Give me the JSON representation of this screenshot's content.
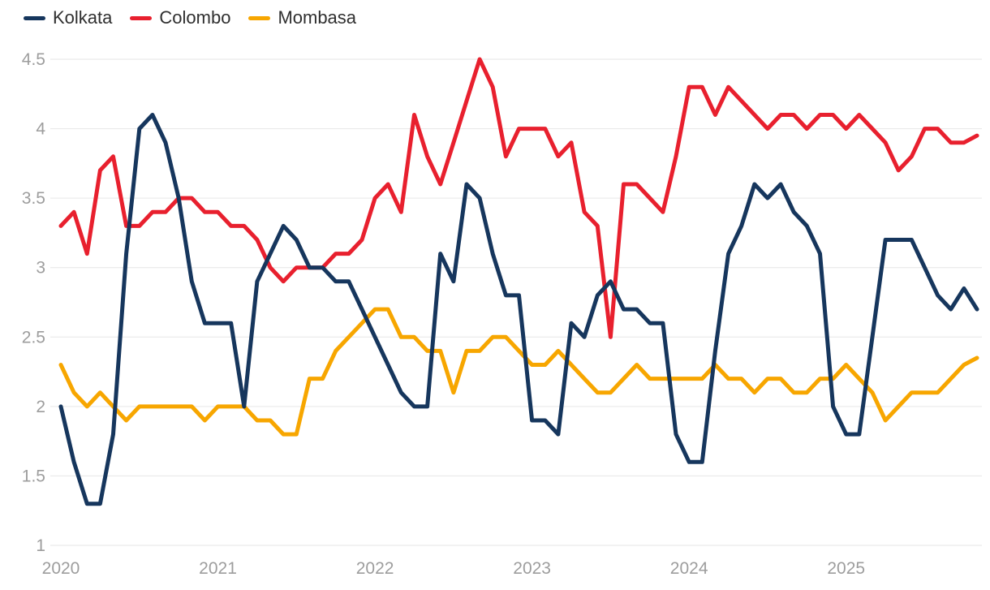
{
  "legend": {
    "items": [
      {
        "label": "Kolkata",
        "color": "#16365d"
      },
      {
        "label": "Colombo",
        "color": "#e8202e"
      },
      {
        "label": "Mombasa",
        "color": "#f7a600"
      }
    ]
  },
  "styles": {
    "background": "#ffffff",
    "grid_color": "#e6e6e6",
    "tick_color": "#9d9d9d",
    "legend_text_color": "#2f2f2f",
    "tick_font_size": 21
  },
  "chart_data": {
    "type": "line",
    "title": "",
    "xlabel": "",
    "ylabel": "",
    "ylim": [
      1,
      4.5
    ],
    "grid": "horizontal-only",
    "legend_position": "top-left",
    "y_ticks": [
      {
        "label": "4.5",
        "value": 4.5
      },
      {
        "label": "4",
        "value": 4.0
      },
      {
        "label": "3.5",
        "value": 3.5
      },
      {
        "label": "3",
        "value": 3.0
      },
      {
        "label": "2.5",
        "value": 2.5
      },
      {
        "label": "2",
        "value": 2.0
      },
      {
        "label": "1.5",
        "value": 1.5
      },
      {
        "label": "1",
        "value": 1.0
      }
    ],
    "x_ticks": [
      {
        "label": "2020",
        "month_index": 0
      },
      {
        "label": "2021",
        "month_index": 12
      },
      {
        "label": "2022",
        "month_index": 24
      },
      {
        "label": "2023",
        "month_index": 36
      },
      {
        "label": "2024",
        "month_index": 48
      },
      {
        "label": "2025",
        "month_index": 60
      }
    ],
    "x": [
      "2020-01",
      "2020-02",
      "2020-03",
      "2020-04",
      "2020-05",
      "2020-06",
      "2020-07",
      "2020-08",
      "2020-09",
      "2020-10",
      "2020-11",
      "2020-12",
      "2021-01",
      "2021-02",
      "2021-03",
      "2021-04",
      "2021-05",
      "2021-06",
      "2021-07",
      "2021-08",
      "2021-09",
      "2021-10",
      "2021-11",
      "2021-12",
      "2022-01",
      "2022-02",
      "2022-03",
      "2022-04",
      "2022-05",
      "2022-06",
      "2022-07",
      "2022-08",
      "2022-09",
      "2022-10",
      "2022-11",
      "2022-12",
      "2023-01",
      "2023-02",
      "2023-03",
      "2023-04",
      "2023-05",
      "2023-06",
      "2023-07",
      "2023-08",
      "2023-09",
      "2023-10",
      "2023-11",
      "2023-12",
      "2024-01",
      "2024-02",
      "2024-03",
      "2024-04",
      "2024-05",
      "2024-06",
      "2024-07",
      "2024-08",
      "2024-09",
      "2024-10",
      "2024-11",
      "2024-12",
      "2025-01",
      "2025-02",
      "2025-03",
      "2025-04",
      "2025-05",
      "2025-06",
      "2025-07",
      "2025-08",
      "2025-09",
      "2025-10",
      "2025-11"
    ],
    "series": [
      {
        "name": "Kolkata",
        "color": "#16365d",
        "values": [
          2.0,
          1.6,
          1.3,
          1.3,
          1.8,
          3.1,
          4.0,
          4.1,
          3.9,
          3.5,
          2.9,
          2.6,
          2.6,
          2.6,
          2.0,
          2.9,
          3.1,
          3.3,
          3.2,
          3.0,
          3.0,
          2.9,
          2.9,
          2.7,
          2.5,
          2.3,
          2.1,
          2.0,
          2.0,
          3.1,
          2.9,
          3.6,
          3.5,
          3.1,
          2.8,
          2.8,
          1.9,
          1.9,
          1.8,
          2.6,
          2.5,
          2.8,
          2.9,
          2.7,
          2.7,
          2.6,
          2.6,
          1.8,
          1.6,
          1.6,
          2.4,
          3.1,
          3.3,
          3.6,
          3.5,
          3.6,
          3.4,
          3.3,
          3.1,
          2.0,
          1.8,
          1.8,
          2.5,
          3.2,
          3.2,
          3.2,
          3.0,
          2.8,
          2.7,
          2.85,
          2.7
        ]
      },
      {
        "name": "Colombo",
        "color": "#e8202e",
        "values": [
          3.3,
          3.4,
          3.1,
          3.7,
          3.8,
          3.3,
          3.3,
          3.4,
          3.4,
          3.5,
          3.5,
          3.4,
          3.4,
          3.3,
          3.3,
          3.2,
          3.0,
          2.9,
          3.0,
          3.0,
          3.0,
          3.1,
          3.1,
          3.2,
          3.5,
          3.6,
          3.4,
          4.1,
          3.8,
          3.6,
          3.9,
          4.2,
          4.5,
          4.3,
          3.8,
          4.0,
          4.0,
          4.0,
          3.8,
          3.9,
          3.4,
          3.3,
          2.5,
          3.6,
          3.6,
          3.5,
          3.4,
          3.8,
          4.3,
          4.3,
          4.1,
          4.3,
          4.2,
          4.1,
          4.0,
          4.1,
          4.1,
          4.0,
          4.1,
          4.1,
          4.0,
          4.1,
          4.0,
          3.9,
          3.7,
          3.8,
          4.0,
          4.0,
          3.9,
          3.9,
          3.95
        ]
      },
      {
        "name": "Mombasa",
        "color": "#f7a600",
        "values": [
          2.3,
          2.1,
          2.0,
          2.1,
          2.0,
          1.9,
          2.0,
          2.0,
          2.0,
          2.0,
          2.0,
          1.9,
          2.0,
          2.0,
          2.0,
          1.9,
          1.9,
          1.8,
          1.8,
          2.2,
          2.2,
          2.4,
          2.5,
          2.6,
          2.7,
          2.7,
          2.5,
          2.5,
          2.4,
          2.4,
          2.1,
          2.4,
          2.4,
          2.5,
          2.5,
          2.4,
          2.3,
          2.3,
          2.4,
          2.3,
          2.2,
          2.1,
          2.1,
          2.2,
          2.3,
          2.2,
          2.2,
          2.2,
          2.2,
          2.2,
          2.3,
          2.2,
          2.2,
          2.1,
          2.2,
          2.2,
          2.1,
          2.1,
          2.2,
          2.2,
          2.3,
          2.2,
          2.1,
          1.9,
          2.0,
          2.1,
          2.1,
          2.1,
          2.2,
          2.3,
          2.35
        ]
      }
    ]
  }
}
